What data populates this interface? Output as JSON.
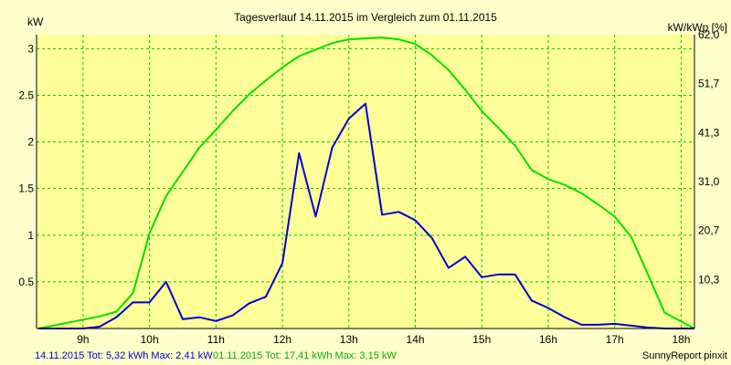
{
  "chart_data": {
    "type": "line",
    "title": "Tagesverlauf 14.11.2015 im Vergleich zum 01.11.2015",
    "ylabel_left": "kW",
    "ylabel_right": "kW/kWp [%]",
    "xlim": [
      8.3,
      18.2
    ],
    "ylim": [
      0,
      3.15
    ],
    "grid": true,
    "x_ticks": [
      {
        "value": 9,
        "label": "9h"
      },
      {
        "value": 10,
        "label": "10h"
      },
      {
        "value": 11,
        "label": "11h"
      },
      {
        "value": 12,
        "label": "12h"
      },
      {
        "value": 13,
        "label": "13h"
      },
      {
        "value": 14,
        "label": "14h"
      },
      {
        "value": 15,
        "label": "15h"
      },
      {
        "value": 16,
        "label": "16h"
      },
      {
        "value": 17,
        "label": "17h"
      },
      {
        "value": 18,
        "label": "18h"
      }
    ],
    "y_ticks_left": [
      {
        "value": 0.5,
        "label": "0.5"
      },
      {
        "value": 1,
        "label": "1"
      },
      {
        "value": 1.5,
        "label": "1.5"
      },
      {
        "value": 2,
        "label": "2"
      },
      {
        "value": 2.5,
        "label": "2.5"
      },
      {
        "value": 3,
        "label": "3"
      }
    ],
    "y_ticks_right": [
      {
        "value": 0.525,
        "label": "10,3"
      },
      {
        "value": 1.05,
        "label": "20,7"
      },
      {
        "value": 1.575,
        "label": "31,0"
      },
      {
        "value": 2.1,
        "label": "41,3"
      },
      {
        "value": 2.625,
        "label": "51,7"
      },
      {
        "value": 3.15,
        "label": "62,0"
      }
    ],
    "series": [
      {
        "color": "#00e000",
        "x": [
          8.33,
          9.25,
          9.5,
          9.75,
          10.0,
          10.25,
          10.5,
          10.75,
          11.0,
          11.25,
          11.5,
          11.75,
          12.0,
          12.25,
          12.5,
          12.75,
          13.0,
          13.25,
          13.5,
          13.75,
          14.0,
          14.25,
          14.5,
          14.75,
          15.0,
          15.25,
          15.5,
          15.75,
          16.0,
          16.25,
          16.5,
          16.75,
          17.0,
          17.25,
          17.5,
          17.75,
          18.2
        ],
        "y": [
          0,
          0.13,
          0.18,
          0.38,
          1.02,
          1.42,
          1.68,
          1.94,
          2.13,
          2.33,
          2.51,
          2.66,
          2.8,
          2.92,
          2.99,
          3.06,
          3.1,
          3.11,
          3.12,
          3.1,
          3.05,
          2.93,
          2.77,
          2.56,
          2.33,
          2.15,
          1.96,
          1.7,
          1.6,
          1.54,
          1.45,
          1.33,
          1.2,
          0.98,
          0.58,
          0.17,
          0
        ]
      },
      {
        "color": "#0000cc",
        "x": [
          8.33,
          9.0,
          9.25,
          9.5,
          9.75,
          10.0,
          10.25,
          10.5,
          10.75,
          11.0,
          11.25,
          11.5,
          11.75,
          12.0,
          12.25,
          12.5,
          12.75,
          13.0,
          13.25,
          13.5,
          13.75,
          14.0,
          14.25,
          14.5,
          14.75,
          15.0,
          15.25,
          15.5,
          15.75,
          16.0,
          16.25,
          16.5,
          16.75,
          17.0,
          17.25,
          17.5,
          17.75,
          18.2
        ],
        "y": [
          0,
          0,
          0.02,
          0.12,
          0.28,
          0.28,
          0.5,
          0.1,
          0.12,
          0.08,
          0.14,
          0.27,
          0.34,
          0.7,
          1.88,
          1.2,
          1.94,
          2.25,
          2.41,
          1.22,
          1.25,
          1.16,
          0.97,
          0.65,
          0.77,
          0.55,
          0.58,
          0.58,
          0.3,
          0.22,
          0.12,
          0.04,
          0.04,
          0.05,
          0.03,
          0.01,
          0,
          0
        ]
      }
    ]
  },
  "footer": {
    "series1_text": "14.11.2015 Tot: 5,32 kWh Max: 2,41 kW",
    "series2_text": "01.11.2015 Tot: 17,41 kWh Max: 3,15 kW",
    "credit": "SunnyReport pinxit"
  }
}
